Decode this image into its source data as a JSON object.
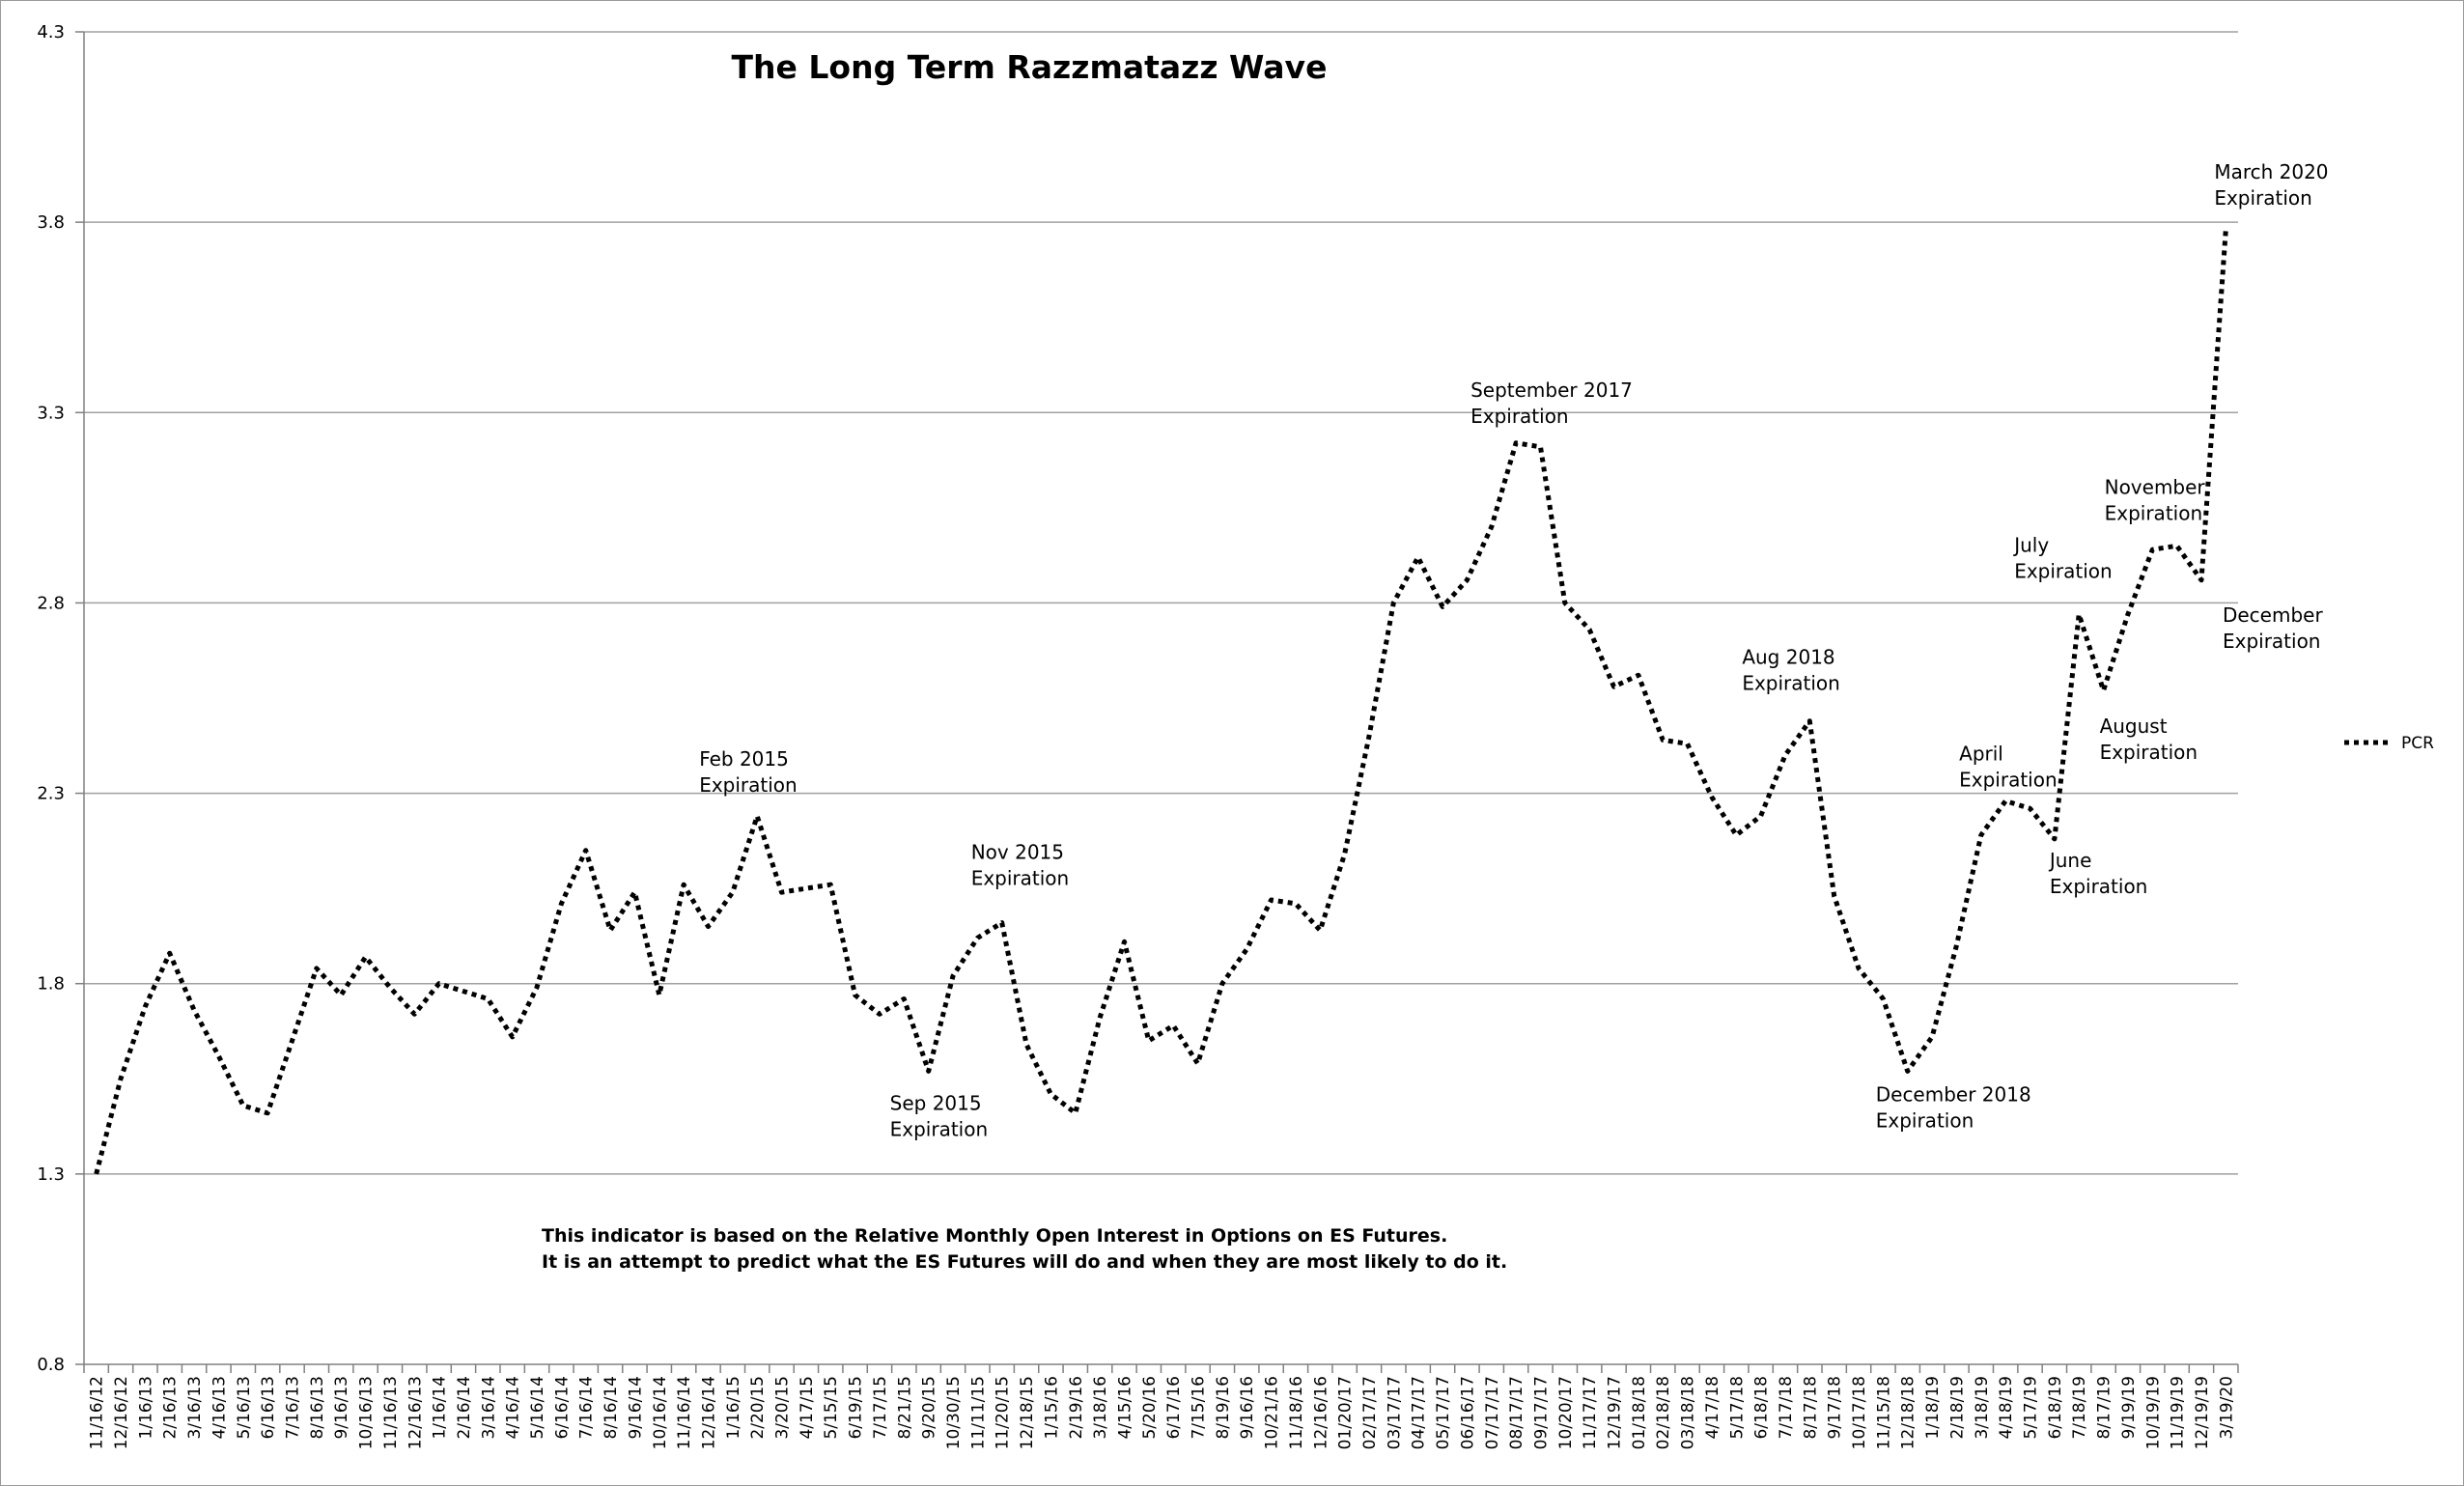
{
  "chart_data": {
    "type": "line",
    "title": "The Long Term Razzmatazz Wave",
    "xlabel": "",
    "ylabel": "",
    "ylim": [
      0.8,
      4.3
    ],
    "yticks": [
      "0.8",
      "1.3",
      "1.8",
      "2.3",
      "2.8",
      "3.3",
      "3.8",
      "4.3"
    ],
    "grid": true,
    "legend_position": "right",
    "categories": [
      "11/16/12",
      "12/16/12",
      "1/16/13",
      "2/16/13",
      "3/16/13",
      "4/16/13",
      "5/16/13",
      "6/16/13",
      "7/16/13",
      "8/16/13",
      "9/16/13",
      "10/16/13",
      "11/16/13",
      "12/16/13",
      "1/16/14",
      "2/16/14",
      "3/16/14",
      "4/16/14",
      "5/16/14",
      "6/16/14",
      "7/16/14",
      "8/16/14",
      "9/16/14",
      "10/16/14",
      "11/16/14",
      "12/16/14",
      "1/16/15",
      "2/20/15",
      "3/20/15",
      "4/17/15",
      "5/15/15",
      "6/19/15",
      "7/17/15",
      "8/21/15",
      "9/20/15",
      "10/30/15",
      "11/11/15",
      "11/20/15",
      "12/18/15",
      "1/15/16",
      "2/19/16",
      "3/18/16",
      "4/15/16",
      "5/20/16",
      "6/17/16",
      "7/15/16",
      "8/19/16",
      "9/16/16",
      "10/21/16",
      "11/18/16",
      "12/16/16",
      "01/20/17",
      "02/17/17",
      "03/17/17",
      "04/17/17",
      "05/17/17",
      "06/16/17",
      "07/17/17",
      "08/17/17",
      "09/17/17",
      "10/20/17",
      "11/17/17",
      "12/19/17",
      "01/18/18",
      "02/18/18",
      "03/18/18",
      "4/17/18",
      "5/17/18",
      "6/18/18",
      "7/17/18",
      "8/17/18",
      "9/17/18",
      "10/17/18",
      "11/15/18",
      "12/18/18",
      "1/18/19",
      "2/18/19",
      "3/18/19",
      "4/18/19",
      "5/17/19",
      "6/18/19",
      "7/18/19",
      "8/17/19",
      "9/19/19",
      "10/19/19",
      "11/19/19",
      "12/19/19",
      "3/19/20"
    ],
    "series": [
      {
        "name": "PCR",
        "color": "#000000",
        "style": "dotted",
        "values": [
          1.3,
          1.55,
          1.74,
          1.88,
          1.73,
          1.61,
          1.48,
          1.46,
          1.65,
          1.84,
          1.77,
          1.87,
          1.79,
          1.72,
          1.8,
          1.78,
          1.76,
          1.66,
          1.79,
          2.01,
          2.15,
          1.94,
          2.04,
          1.77,
          2.06,
          1.95,
          2.04,
          2.24,
          2.04,
          2.05,
          2.06,
          1.77,
          1.72,
          1.76,
          1.57,
          1.82,
          1.92,
          1.96,
          1.64,
          1.51,
          1.46,
          1.71,
          1.91,
          1.65,
          1.69,
          1.59,
          1.8,
          1.89,
          2.02,
          2.01,
          1.94,
          2.14,
          2.45,
          2.8,
          2.92,
          2.79,
          2.86,
          3.0,
          3.22,
          3.21,
          2.8,
          2.73,
          2.58,
          2.61,
          2.44,
          2.43,
          2.29,
          2.19,
          2.24,
          2.4,
          2.49,
          2.03,
          1.84,
          1.76,
          1.57,
          1.66,
          1.9,
          2.19,
          2.28,
          2.26,
          2.18,
          2.77,
          2.57,
          2.77,
          2.94,
          2.95,
          2.86,
          3.78
        ]
      }
    ],
    "annotations": [
      {
        "lines": [
          "Feb 2015",
          "Expiration"
        ],
        "category": "2/20/15",
        "value": 2.24
      },
      {
        "lines": [
          "Sep 2015",
          "Expiration"
        ],
        "category": "9/20/15",
        "value": 1.57
      },
      {
        "lines": [
          "Nov 2015",
          "Expiration"
        ],
        "category": "11/20/15",
        "value": 1.96
      },
      {
        "lines": [
          "September 2017",
          "Expiration"
        ],
        "category": "08/17/17",
        "value": 3.22
      },
      {
        "lines": [
          "Aug 2018",
          "Expiration"
        ],
        "category": "8/17/18",
        "value": 2.49
      },
      {
        "lines": [
          "December 2018",
          "Expiration"
        ],
        "category": "12/18/18",
        "value": 1.57
      },
      {
        "lines": [
          "April",
          "Expiration"
        ],
        "category": "4/18/19",
        "value": 2.28
      },
      {
        "lines": [
          "June",
          "Expiration"
        ],
        "category": "6/18/19",
        "value": 2.18
      },
      {
        "lines": [
          "July",
          "Expiration"
        ],
        "category": "7/18/19",
        "value": 2.77
      },
      {
        "lines": [
          "August",
          "Expiration"
        ],
        "category": "8/17/19",
        "value": 2.57
      },
      {
        "lines": [
          "November",
          "Expiration"
        ],
        "category": "11/19/19",
        "value": 2.95
      },
      {
        "lines": [
          "December",
          "Expiration"
        ],
        "category": "12/19/19",
        "value": 2.86
      },
      {
        "lines": [
          "March 2020",
          "Expiration"
        ],
        "category": "3/19/20",
        "value": 3.78
      }
    ],
    "notes": [
      "This indicator is based on the Relative Monthly Open Interest in Options on ES Futures.",
      "It is an attempt to predict what the ES Futures will do and when they are most likely to do it."
    ]
  }
}
